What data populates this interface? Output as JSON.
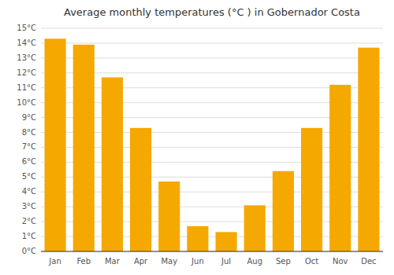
{
  "chart_data": {
    "type": "bar",
    "title": "Average monthly temperatures (°C ) in Gobernador Costa",
    "categories": [
      "Jan",
      "Feb",
      "Mar",
      "Apr",
      "May",
      "Jun",
      "Jul",
      "Aug",
      "Sep",
      "Oct",
      "Nov",
      "Dec"
    ],
    "values": [
      14.3,
      13.9,
      11.7,
      8.3,
      4.7,
      1.7,
      1.3,
      3.1,
      5.4,
      8.3,
      11.2,
      13.7
    ],
    "color": "#F5A800",
    "ylim": [
      0,
      15
    ],
    "yticks": [
      {
        "value": 0,
        "label": "0°C"
      },
      {
        "value": 1,
        "label": "1°C"
      },
      {
        "value": 2,
        "label": "2°C"
      },
      {
        "value": 3,
        "label": "3°C"
      },
      {
        "value": 4,
        "label": "4°C"
      },
      {
        "value": 5,
        "label": "5°C"
      },
      {
        "value": 6,
        "label": "6°C"
      },
      {
        "value": 7,
        "label": "7°C"
      },
      {
        "value": 8,
        "label": "8°C"
      },
      {
        "value": 9,
        "label": "9°C"
      },
      {
        "value": 10,
        "label": "10°C"
      },
      {
        "value": 11,
        "label": "11°C"
      },
      {
        "value": 12,
        "label": "12°C"
      },
      {
        "value": 13,
        "label": "13°C"
      },
      {
        "value": 14,
        "label": "14°C"
      },
      {
        "value": 15,
        "label": "15°C"
      }
    ],
    "grid": true
  }
}
